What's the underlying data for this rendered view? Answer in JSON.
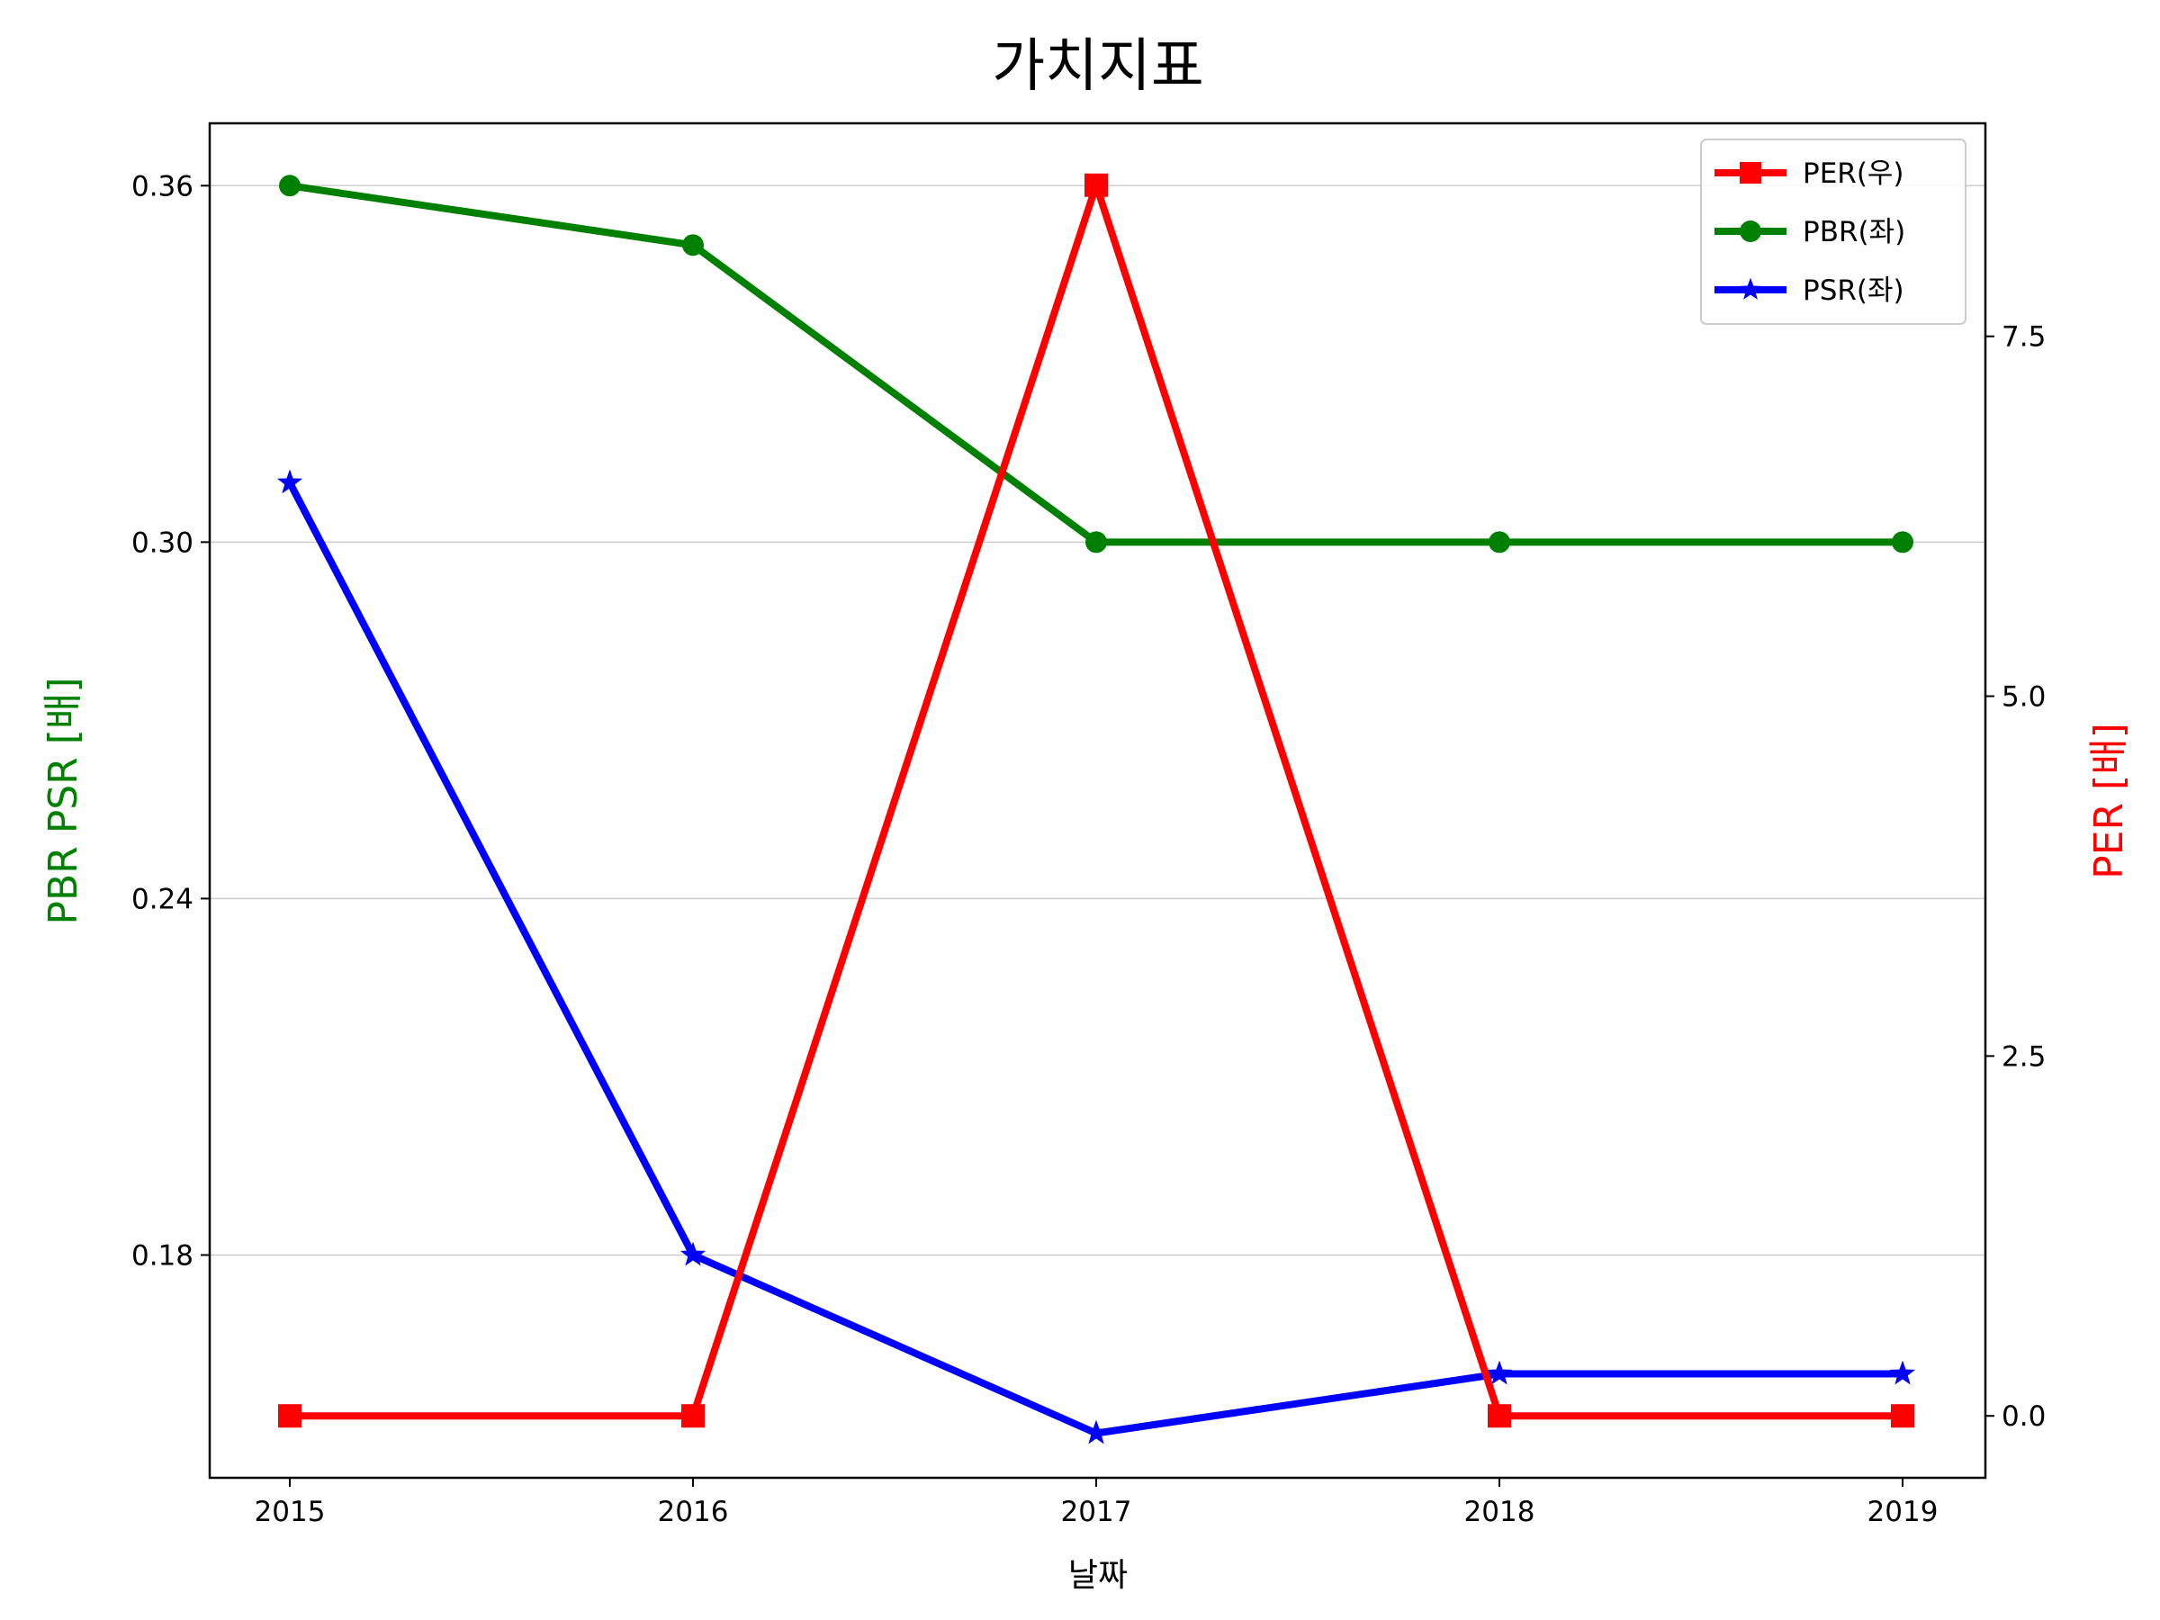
{
  "chart_data": {
    "type": "line",
    "title": "가치지표",
    "xlabel": "날짜",
    "ylabel_left": "PBR PSR [배]",
    "ylabel_right": "PER [배]",
    "categories": [
      "2015",
      "2016",
      "2017",
      "2018",
      "2019"
    ],
    "y_left": {
      "ticks": [
        0.18,
        0.24,
        0.3,
        0.36
      ],
      "tick_labels": [
        "0.18",
        "0.24",
        "0.30",
        "0.36"
      ],
      "ylim": [
        0.1425,
        0.3705
      ]
    },
    "y_right": {
      "ticks": [
        0.0,
        2.5,
        5.0,
        7.5
      ],
      "tick_labels": [
        "0.0",
        "2.5",
        "5.0",
        "7.5"
      ],
      "ylim": [
        -0.43,
        8.98
      ]
    },
    "grid": "horizontal (left axis)",
    "legend_position": "top-right",
    "series": [
      {
        "name": "PER(우)",
        "axis": "right",
        "color": "#ff0000",
        "marker": "square",
        "values": [
          0.0,
          0.0,
          8.55,
          0.0,
          0.0
        ]
      },
      {
        "name": "PBR(좌)",
        "axis": "left",
        "color": "#008000",
        "marker": "circle",
        "values": [
          0.36,
          0.35,
          0.3,
          0.3,
          0.3
        ]
      },
      {
        "name": "PSR(좌)",
        "axis": "left",
        "color": "#0000ff",
        "marker": "star",
        "values": [
          0.31,
          0.18,
          0.15,
          0.16,
          0.16
        ]
      }
    ]
  }
}
